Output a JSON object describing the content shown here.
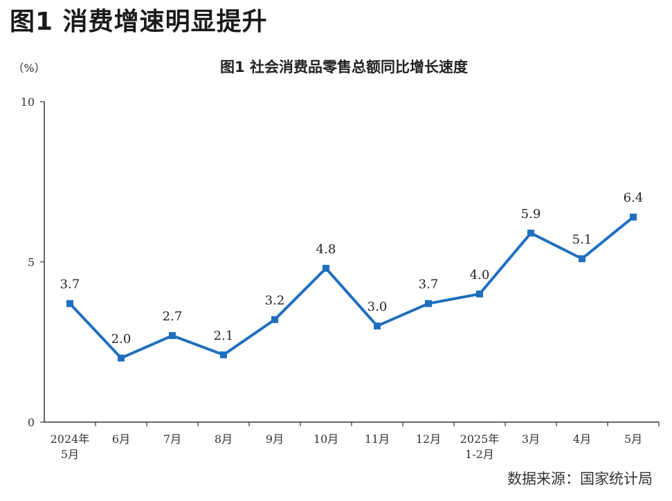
{
  "page": {
    "heading": "图1  消费增速明显提升",
    "source": "数据来源：国家统计局"
  },
  "chart_data": {
    "type": "line",
    "title": "图1  社会消费品零售总额同比增长速度",
    "ylabel": "（%）",
    "xlabel": "",
    "ylim": [
      0,
      10
    ],
    "yticks": [
      0,
      5,
      10
    ],
    "categories": [
      "2024年\n5月",
      "6月",
      "7月",
      "8月",
      "9月",
      "10月",
      "11月",
      "12月",
      "2025年\n1-2月",
      "3月",
      "4月",
      "5月"
    ],
    "series": [
      {
        "values": [
          3.7,
          2.0,
          2.7,
          2.1,
          3.2,
          4.8,
          3.0,
          3.7,
          4.0,
          5.9,
          5.1,
          6.4
        ],
        "labels": [
          "3.7",
          "2.0",
          "2.7",
          "2.1",
          "3.2",
          "4.8",
          "3.0",
          "3.7",
          "4.0",
          "5.9",
          "5.1",
          "6.4"
        ]
      }
    ],
    "colors": {
      "line": "#1f6fbf",
      "axis": "#333333"
    },
    "grid": false,
    "legend": "none"
  }
}
